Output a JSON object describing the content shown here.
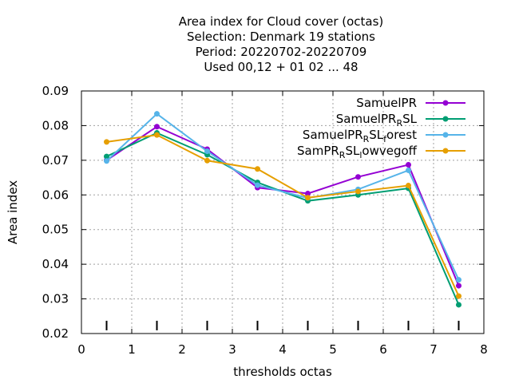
{
  "chart_data": {
    "type": "line",
    "title_lines": [
      "Area index  for Cloud cover (octas)",
      "Selection: Denmark      19 stations",
      "Period: 20220702-20220709",
      "Used  00,12  + 01 02 ... 48"
    ],
    "xlabel": "thresholds octas",
    "ylabel": "Area index",
    "xlim": [
      0,
      8
    ],
    "ylim": [
      0.02,
      0.09
    ],
    "x_ticks": [
      0,
      1,
      2,
      3,
      4,
      5,
      6,
      7,
      8
    ],
    "y_ticks": [
      0.02,
      0.03,
      0.04,
      0.05,
      0.06,
      0.07,
      0.08,
      0.09
    ],
    "x_tick_labels": [
      "0",
      "1",
      "2",
      "3",
      "4",
      "5",
      "6",
      "7",
      "8"
    ],
    "y_tick_labels": [
      "0.02",
      "0.03",
      "0.04",
      "0.05",
      "0.06",
      "0.07",
      "0.08",
      "0.09"
    ],
    "grid": true,
    "legend_position": "top-right",
    "x": [
      0.5,
      1.5,
      2.5,
      3.5,
      4.5,
      5.5,
      6.5,
      7.5
    ],
    "series": [
      {
        "name_parts": [
          {
            "t": "SamuelPR",
            "s": "n"
          }
        ],
        "color": "#9400d3",
        "values": [
          0.07,
          0.0797,
          0.0732,
          0.0621,
          0.0604,
          0.0652,
          0.0687,
          0.0338
        ]
      },
      {
        "name_parts": [
          {
            "t": "SamuelPR",
            "s": "n"
          },
          {
            "t": "R",
            "s": "sub"
          },
          {
            "t": "SL",
            "s": "n"
          }
        ],
        "color": "#009e73",
        "values": [
          0.0711,
          0.0779,
          0.0716,
          0.0636,
          0.0583,
          0.06,
          0.0619,
          0.0283
        ]
      },
      {
        "name_parts": [
          {
            "t": "SamuelPR",
            "s": "n"
          },
          {
            "t": "R",
            "s": "sub"
          },
          {
            "t": "SL",
            "s": "n"
          },
          {
            "t": "f",
            "s": "sub"
          },
          {
            "t": "orest",
            "s": "n"
          }
        ],
        "color": "#56b4e9",
        "values": [
          0.0698,
          0.0834,
          0.0726,
          0.0628,
          0.0591,
          0.0616,
          0.0671,
          0.0355
        ]
      },
      {
        "name_parts": [
          {
            "t": "SamPR",
            "s": "n"
          },
          {
            "t": "R",
            "s": "sub"
          },
          {
            "t": "SL",
            "s": "n"
          },
          {
            "t": "l",
            "s": "sub"
          },
          {
            "t": "owvegoff",
            "s": "n"
          }
        ],
        "color": "#e69f00",
        "values": [
          0.0753,
          0.0773,
          0.0699,
          0.0675,
          0.0592,
          0.061,
          0.0627,
          0.0308
        ]
      }
    ]
  }
}
